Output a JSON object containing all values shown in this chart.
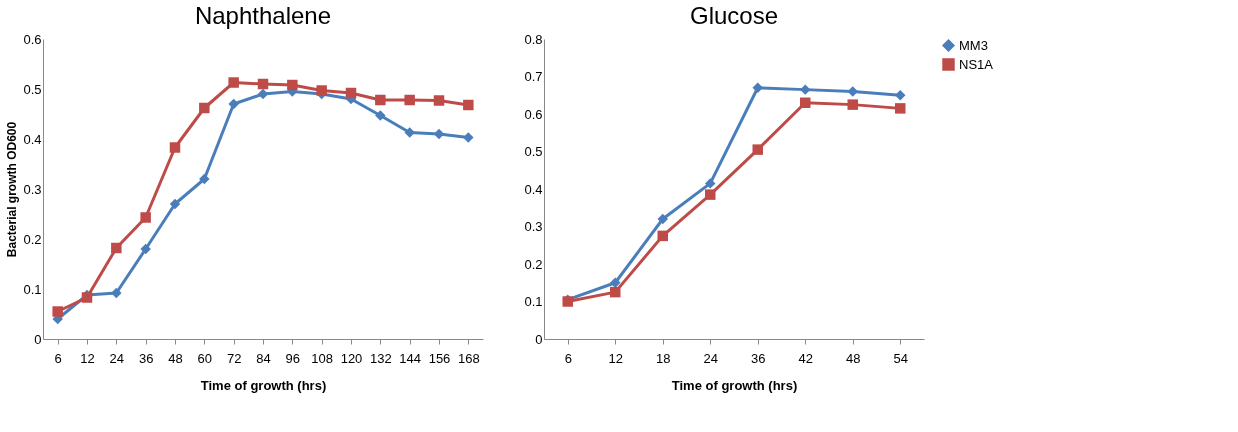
{
  "chart_data": [
    {
      "type": "line",
      "title": "Naphthalene",
      "xlabel": "Time  of growth (hrs)",
      "ylabel": "Bacterial growth OD600",
      "categories": [
        "6",
        "12",
        "24",
        "36",
        "48",
        "60",
        "72",
        "84",
        "96",
        "108",
        "120",
        "132",
        "144",
        "156",
        "168"
      ],
      "ylim": [
        0,
        0.6
      ],
      "yticks": [
        0,
        0.1,
        0.2,
        0.3,
        0.4,
        0.5,
        0.6
      ],
      "grid": false,
      "legend": false,
      "series": [
        {
          "color": "#4a7ebb",
          "marker": "diamond",
          "values": [
            0.04,
            0.088,
            0.092,
            0.18,
            0.27,
            0.32,
            0.47,
            0.49,
            0.495,
            0.49,
            0.48,
            0.447,
            0.413,
            0.41,
            0.403
          ]
        },
        {
          "color": "#be4b48",
          "marker": "square",
          "values": [
            0.055,
            0.083,
            0.182,
            0.243,
            0.383,
            0.462,
            0.513,
            0.51,
            0.508,
            0.497,
            0.492,
            0.478,
            0.478,
            0.477,
            0.468
          ]
        }
      ]
    },
    {
      "type": "line",
      "title": "Glucose",
      "xlabel": "Time  of growth (hrs)",
      "categories": [
        "6",
        "12",
        "18",
        "24",
        "36",
        "42",
        "48",
        "54"
      ],
      "ylim": [
        0,
        0.8
      ],
      "yticks": [
        0,
        0.1,
        0.2,
        0.3,
        0.4,
        0.5,
        0.6,
        0.7,
        0.8
      ],
      "grid": false,
      "legend": "right",
      "series": [
        {
          "name": "MM3",
          "color": "#4a7ebb",
          "marker": "diamond",
          "values": [
            0.105,
            0.15,
            0.32,
            0.415,
            0.67,
            0.665,
            0.66,
            0.65
          ]
        },
        {
          "name": "NS1A",
          "color": "#be4b48",
          "marker": "square",
          "values": [
            0.1,
            0.125,
            0.275,
            0.385,
            0.505,
            0.63,
            0.625,
            0.615
          ]
        }
      ]
    }
  ]
}
